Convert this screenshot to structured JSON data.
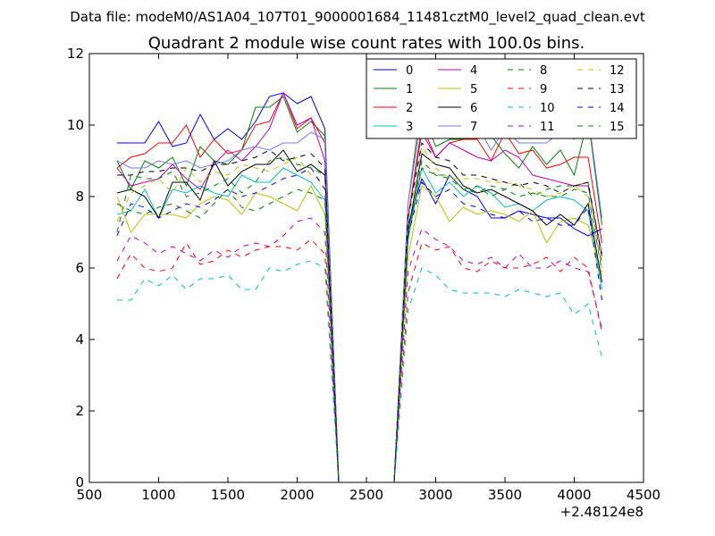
{
  "suptitle": "Data file: modeM0/AS1A04_107T01_9000001684_11481cztM0_level2_quad_clean.evt",
  "chart_data": {
    "type": "line",
    "title": "Quadrant 2 module wise count rates with 100.0s bins.",
    "xlabel": "",
    "ylabel": "",
    "xlim": [
      500,
      4500
    ],
    "ylim": [
      0,
      12
    ],
    "x_offset_label": "+2.48124e8",
    "x_ticks": [
      500,
      1000,
      1500,
      2000,
      2500,
      3000,
      3500,
      4000,
      4500
    ],
    "y_ticks": [
      0,
      2,
      4,
      6,
      8,
      10,
      12
    ],
    "grid": false,
    "legend_position": "top-right",
    "legend_columns": 4,
    "x": [
      700,
      800,
      900,
      1000,
      1100,
      1200,
      1300,
      1400,
      1500,
      1600,
      1700,
      1800,
      1900,
      2000,
      2100,
      2200,
      2300,
      2400,
      2500,
      2600,
      2700,
      2800,
      2900,
      3000,
      3100,
      3200,
      3300,
      3400,
      3500,
      3600,
      3700,
      3800,
      3900,
      4000,
      4100,
      4200
    ],
    "series": [
      {
        "name": "0",
        "color": "#0000ff",
        "dash": "solid",
        "values": [
          9.5,
          9.5,
          9.5,
          10.1,
          9.4,
          9.5,
          10.3,
          9.6,
          9.9,
          9.6,
          10.1,
          10.8,
          10.9,
          10.6,
          10.8,
          9.9,
          0,
          0,
          0,
          0,
          0,
          7.2,
          8.5,
          7.8,
          8.6,
          8.2,
          8.0,
          7.4,
          7.4,
          7.6,
          7.5,
          7.4,
          7.4,
          7.1,
          6.9,
          7.1
        ]
      },
      {
        "name": "1",
        "color": "#008000",
        "dash": "solid",
        "values": [
          9.0,
          8.2,
          9.0,
          8.8,
          9.1,
          8.3,
          9.4,
          9.0,
          8.9,
          9.3,
          10.5,
          10.5,
          10.8,
          9.8,
          10.1,
          9.7,
          0,
          0,
          0,
          0,
          0,
          7.8,
          10.4,
          9.4,
          9.6,
          9.6,
          9.8,
          9.7,
          9.2,
          8.8,
          9.4,
          8.9,
          9.3,
          8.6,
          10.2,
          7.2
        ]
      },
      {
        "name": "2",
        "color": "#ff0000",
        "dash": "solid",
        "values": [
          8.8,
          9.1,
          9.2,
          9.5,
          9.5,
          10.0,
          9.1,
          9.6,
          9.2,
          9.3,
          10.0,
          10.1,
          10.9,
          9.9,
          10.2,
          9.5,
          0,
          0,
          0,
          0,
          0,
          7.4,
          10.0,
          9.1,
          9.5,
          9.6,
          9.6,
          9.0,
          9.8,
          9.2,
          9.3,
          8.8,
          8.9,
          9.1,
          9.1,
          6.7
        ]
      },
      {
        "name": "3",
        "color": "#00bfbf",
        "dash": "solid",
        "values": [
          7.5,
          7.6,
          8.2,
          7.4,
          8.2,
          8.1,
          8.3,
          8.1,
          8.0,
          8.6,
          8.4,
          8.4,
          8.8,
          8.6,
          8.4,
          7.9,
          0,
          0,
          0,
          0,
          0,
          6.8,
          8.8,
          8.1,
          8.4,
          8.0,
          8.3,
          8.1,
          7.7,
          7.8,
          7.6,
          7.9,
          8.0,
          7.9,
          7.6,
          5.4
        ]
      },
      {
        "name": "4",
        "color": "#bf00bf",
        "dash": "solid",
        "values": [
          8.8,
          8.3,
          8.4,
          8.5,
          8.9,
          8.5,
          8.2,
          8.9,
          9.3,
          9.0,
          9.4,
          9.9,
          10.9,
          10.0,
          10.2,
          9.0,
          0,
          0,
          0,
          0,
          0,
          7.4,
          9.8,
          9.1,
          9.5,
          9.3,
          9.1,
          9.0,
          9.3,
          9.1,
          8.6,
          8.5,
          8.4,
          8.3,
          8.3,
          6.4
        ]
      },
      {
        "name": "5",
        "color": "#bfbf00",
        "dash": "solid",
        "values": [
          8.0,
          7.0,
          7.5,
          7.5,
          7.5,
          7.4,
          7.8,
          8.0,
          7.9,
          7.5,
          8.1,
          8.0,
          7.8,
          7.6,
          8.3,
          7.5,
          0,
          0,
          0,
          0,
          0,
          6.3,
          8.3,
          8.0,
          7.3,
          7.7,
          7.5,
          7.6,
          7.5,
          7.3,
          7.6,
          6.7,
          7.3,
          7.4,
          7.2,
          5.8
        ]
      },
      {
        "name": "6",
        "color": "#000000",
        "dash": "solid",
        "values": [
          8.1,
          8.2,
          8.0,
          7.4,
          8.4,
          8.4,
          7.9,
          9.0,
          8.3,
          8.7,
          8.9,
          8.9,
          9.3,
          8.7,
          8.9,
          8.6,
          0,
          0,
          0,
          0,
          0,
          7.0,
          9.2,
          8.9,
          8.8,
          8.3,
          8.1,
          8.2,
          8.0,
          7.8,
          7.6,
          7.2,
          7.5,
          7.2,
          7.8,
          5.6
        ]
      },
      {
        "name": "7",
        "color": "#7777ff",
        "dash": "solid",
        "values": [
          9.0,
          8.8,
          8.8,
          9.0,
          8.9,
          9.0,
          8.8,
          8.9,
          9.0,
          9.3,
          9.4,
          9.3,
          9.5,
          9.5,
          9.8,
          9.6,
          0,
          0,
          0,
          0,
          0,
          7.8,
          10.8,
          10.9,
          10.1,
          10.3,
          10.0,
          9.3,
          9.9,
          9.5,
          9.5,
          9.5,
          9.8,
          9.6,
          10.3,
          7.4
        ]
      },
      {
        "name": "8",
        "color": "#008000",
        "dash": "dashed",
        "values": [
          7.0,
          8.6,
          8.5,
          8.5,
          8.7,
          8.0,
          8.1,
          8.3,
          8.5,
          8.1,
          8.4,
          9.0,
          9.1,
          8.9,
          8.8,
          8.6,
          0,
          0,
          0,
          0,
          0,
          7.0,
          8.8,
          8.6,
          8.6,
          8.2,
          8.3,
          8.0,
          8.2,
          8.4,
          8.0,
          8.2,
          8.3,
          8.3,
          8.4,
          6.1
        ]
      },
      {
        "name": "9",
        "color": "#ff0000",
        "dash": "dashed",
        "values": [
          5.7,
          6.4,
          6.0,
          5.9,
          6.0,
          6.7,
          6.1,
          6.2,
          6.5,
          6.3,
          6.5,
          6.6,
          6.6,
          6.5,
          6.8,
          6.4,
          0,
          0,
          0,
          0,
          0,
          5.3,
          6.7,
          6.5,
          6.6,
          6.0,
          5.9,
          6.2,
          6.0,
          6.0,
          6.1,
          6.3,
          5.9,
          6.3,
          6.0,
          4.2
        ]
      },
      {
        "name": "10",
        "color": "#00bfbf",
        "dash": "dashed",
        "values": [
          5.1,
          5.1,
          5.7,
          5.5,
          5.8,
          5.4,
          5.7,
          5.7,
          5.8,
          5.4,
          5.4,
          6.0,
          5.9,
          6.1,
          6.2,
          6.0,
          0,
          0,
          0,
          0,
          0,
          4.8,
          6.0,
          5.8,
          5.4,
          5.3,
          5.3,
          5.3,
          5.2,
          5.4,
          5.3,
          5.2,
          5.3,
          4.7,
          5.0,
          3.5
        ]
      },
      {
        "name": "11",
        "color": "#bf00bf",
        "dash": "dashed",
        "values": [
          6.2,
          6.9,
          6.7,
          6.4,
          6.6,
          6.4,
          6.2,
          6.5,
          6.3,
          6.6,
          6.7,
          6.6,
          6.9,
          7.3,
          7.4,
          7.0,
          0,
          0,
          0,
          0,
          0,
          5.9,
          7.1,
          6.8,
          6.6,
          6.2,
          6.1,
          6.3,
          6.0,
          6.4,
          6.0,
          6.0,
          6.2,
          6.0,
          5.9,
          4.3
        ]
      },
      {
        "name": "12",
        "color": "#bfbf00",
        "dash": "dashed",
        "values": [
          7.3,
          8.1,
          8.3,
          8.5,
          8.1,
          8.8,
          8.4,
          8.7,
          8.6,
          8.9,
          8.8,
          8.7,
          8.9,
          9.1,
          8.6,
          8.4,
          0,
          0,
          0,
          0,
          0,
          7.3,
          9.4,
          8.8,
          8.5,
          8.5,
          8.5,
          8.4,
          8.4,
          8.3,
          8.2,
          8.0,
          8.1,
          8.3,
          8.0,
          6.0
        ]
      },
      {
        "name": "13",
        "color": "#000000",
        "dash": "dashed",
        "values": [
          8.6,
          8.6,
          8.7,
          8.7,
          8.8,
          8.8,
          8.7,
          8.9,
          8.9,
          9.0,
          9.1,
          9.3,
          9.0,
          9.1,
          9.2,
          8.8,
          0,
          0,
          0,
          0,
          0,
          7.4,
          9.5,
          9.1,
          9.0,
          8.6,
          8.6,
          8.5,
          8.4,
          8.3,
          8.4,
          8.3,
          8.1,
          8.3,
          8.4,
          6.3
        ]
      },
      {
        "name": "14",
        "color": "#0000ff",
        "dash": "dashed",
        "values": [
          6.9,
          7.8,
          7.7,
          7.4,
          7.6,
          7.8,
          7.7,
          7.9,
          8.2,
          8.0,
          8.1,
          8.3,
          8.5,
          8.6,
          8.8,
          8.2,
          0,
          0,
          0,
          0,
          0,
          6.9,
          8.4,
          8.0,
          8.2,
          7.8,
          7.7,
          7.5,
          7.4,
          7.6,
          7.3,
          7.4,
          7.2,
          7.2,
          7.7,
          5.1
        ]
      },
      {
        "name": "15",
        "color": "#008000",
        "dash": "dashed",
        "values": [
          7.8,
          7.6,
          7.5,
          7.7,
          7.8,
          7.6,
          7.4,
          7.8,
          8.2,
          7.7,
          7.6,
          7.8,
          8.0,
          8.2,
          8.1,
          7.9,
          0,
          0,
          0,
          0,
          0,
          6.8,
          9.0,
          8.6,
          8.5,
          8.2,
          8.1,
          8.3,
          8.2,
          8.0,
          8.1,
          8.0,
          8.0,
          8.2,
          8.1,
          5.9
        ]
      }
    ]
  }
}
